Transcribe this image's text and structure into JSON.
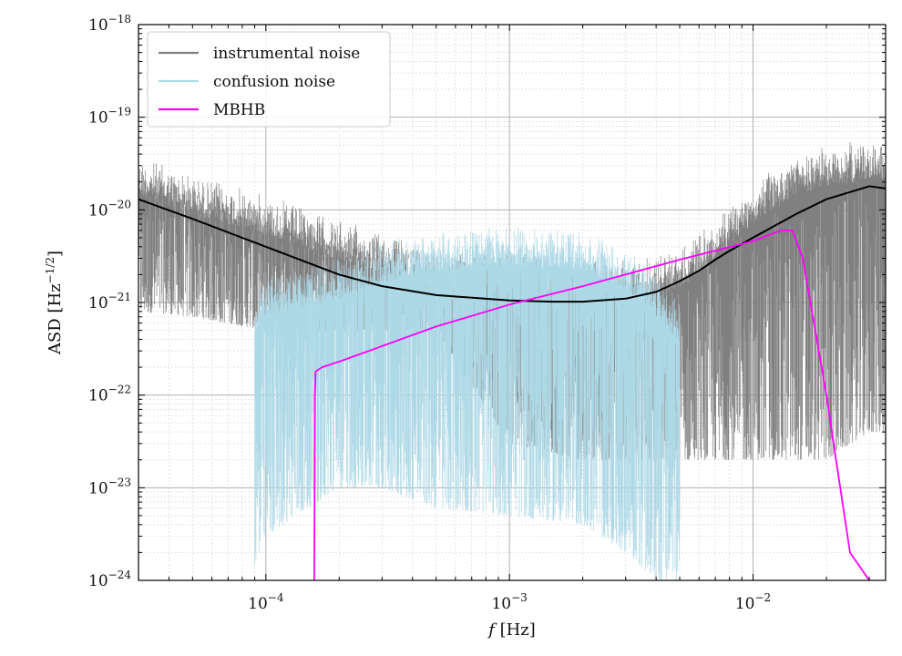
{
  "chart_data": {
    "type": "line",
    "title": "",
    "xscale": "log",
    "yscale": "log",
    "xlim": [
      3e-05,
      0.035
    ],
    "ylim": [
      1e-24,
      1e-18
    ],
    "grid": true,
    "legend_position": "top-left",
    "xlabel": {
      "italic": "f",
      "rest": " [Hz]"
    },
    "ylabel": {
      "base": "ASD [Hz",
      "sup": "−1/2",
      "end": "]"
    },
    "x_ticks": [
      {
        "value": 0.0001,
        "base": "10",
        "exp": "−4"
      },
      {
        "value": 0.001,
        "base": "10",
        "exp": "−3"
      },
      {
        "value": 0.01,
        "base": "10",
        "exp": "−2"
      }
    ],
    "y_ticks": [
      {
        "value": 1e-18,
        "base": "10",
        "exp": "−18"
      },
      {
        "value": 1e-19,
        "base": "10",
        "exp": "−19"
      },
      {
        "value": 1e-20,
        "base": "10",
        "exp": "−20"
      },
      {
        "value": 1e-21,
        "base": "10",
        "exp": "−21"
      },
      {
        "value": 1e-22,
        "base": "10",
        "exp": "−22"
      },
      {
        "value": 1e-23,
        "base": "10",
        "exp": "−23"
      },
      {
        "value": 1e-24,
        "base": "10",
        "exp": "−24"
      }
    ],
    "series": [
      {
        "name": "instrumental noise",
        "color": "#808080",
        "style": "noisy-band",
        "x": [
          3e-05,
          5e-05,
          0.0001,
          0.0002,
          0.0005,
          0.001,
          0.002,
          0.003,
          0.005,
          0.007,
          0.01,
          0.015,
          0.02,
          0.03,
          0.035
        ],
        "upper": [
          4e-20,
          2.5e-20,
          1.5e-20,
          8e-21,
          4e-21,
          3.5e-21,
          3e-21,
          3e-21,
          4e-21,
          8e-21,
          2e-20,
          4e-20,
          5e-20,
          6e-20,
          6e-20
        ],
        "lower": [
          8e-22,
          7e-22,
          5e-22,
          5e-22,
          5e-22,
          3e-23,
          2e-23,
          2e-23,
          2e-23,
          2e-23,
          2e-23,
          2e-23,
          2e-23,
          4e-23,
          4e-23
        ]
      },
      {
        "name": "confusion noise",
        "color": "#add8e6",
        "style": "noisy-band",
        "x": [
          9e-05,
          0.0001,
          0.0002,
          0.0003,
          0.0005,
          0.001,
          0.002,
          0.003,
          0.004,
          0.005
        ],
        "upper": [
          1.3e-21,
          2e-21,
          3e-21,
          4.5e-21,
          6e-21,
          7e-21,
          6e-21,
          4e-21,
          2e-21,
          1e-21
        ],
        "lower": [
          1e-24,
          3e-24,
          1e-23,
          1e-23,
          6e-24,
          5e-24,
          4e-24,
          2e-24,
          1e-24,
          1e-24
        ]
      },
      {
        "name": "",
        "color": "#000000",
        "style": "line",
        "x": [
          3e-05,
          5e-05,
          0.0001,
          0.0002,
          0.0003,
          0.0005,
          0.001,
          0.0015,
          0.002,
          0.003,
          0.004,
          0.005,
          0.006,
          0.007,
          0.008,
          0.01,
          0.015,
          0.02,
          0.03,
          0.035
        ],
        "y": [
          1.3e-20,
          8e-21,
          4e-21,
          2e-21,
          1.5e-21,
          1.2e-21,
          1.05e-21,
          1.02e-21,
          1.02e-21,
          1.1e-21,
          1.3e-21,
          1.7e-21,
          2.2e-21,
          2.9e-21,
          3.6e-21,
          5e-21,
          9e-21,
          1.3e-20,
          1.8e-20,
          1.7e-20
        ]
      },
      {
        "name": "MBHB",
        "color": "#ff00ff",
        "style": "line",
        "x": [
          0.000158,
          0.0001585,
          0.000159,
          0.00016,
          0.00017,
          0.0002,
          0.0005,
          0.001,
          0.002,
          0.005,
          0.01,
          0.013,
          0.0145,
          0.016,
          0.02,
          0.025,
          0.03
        ],
        "y": [
          1e-24,
          1e-23,
          1e-22,
          1.8e-22,
          2e-22,
          2.3e-22,
          5.5e-22,
          9.5e-22,
          1.5e-21,
          2.9e-21,
          4.6e-21,
          6e-21,
          6e-21,
          3e-21,
          1e-22,
          2e-24,
          1e-24
        ]
      }
    ]
  }
}
